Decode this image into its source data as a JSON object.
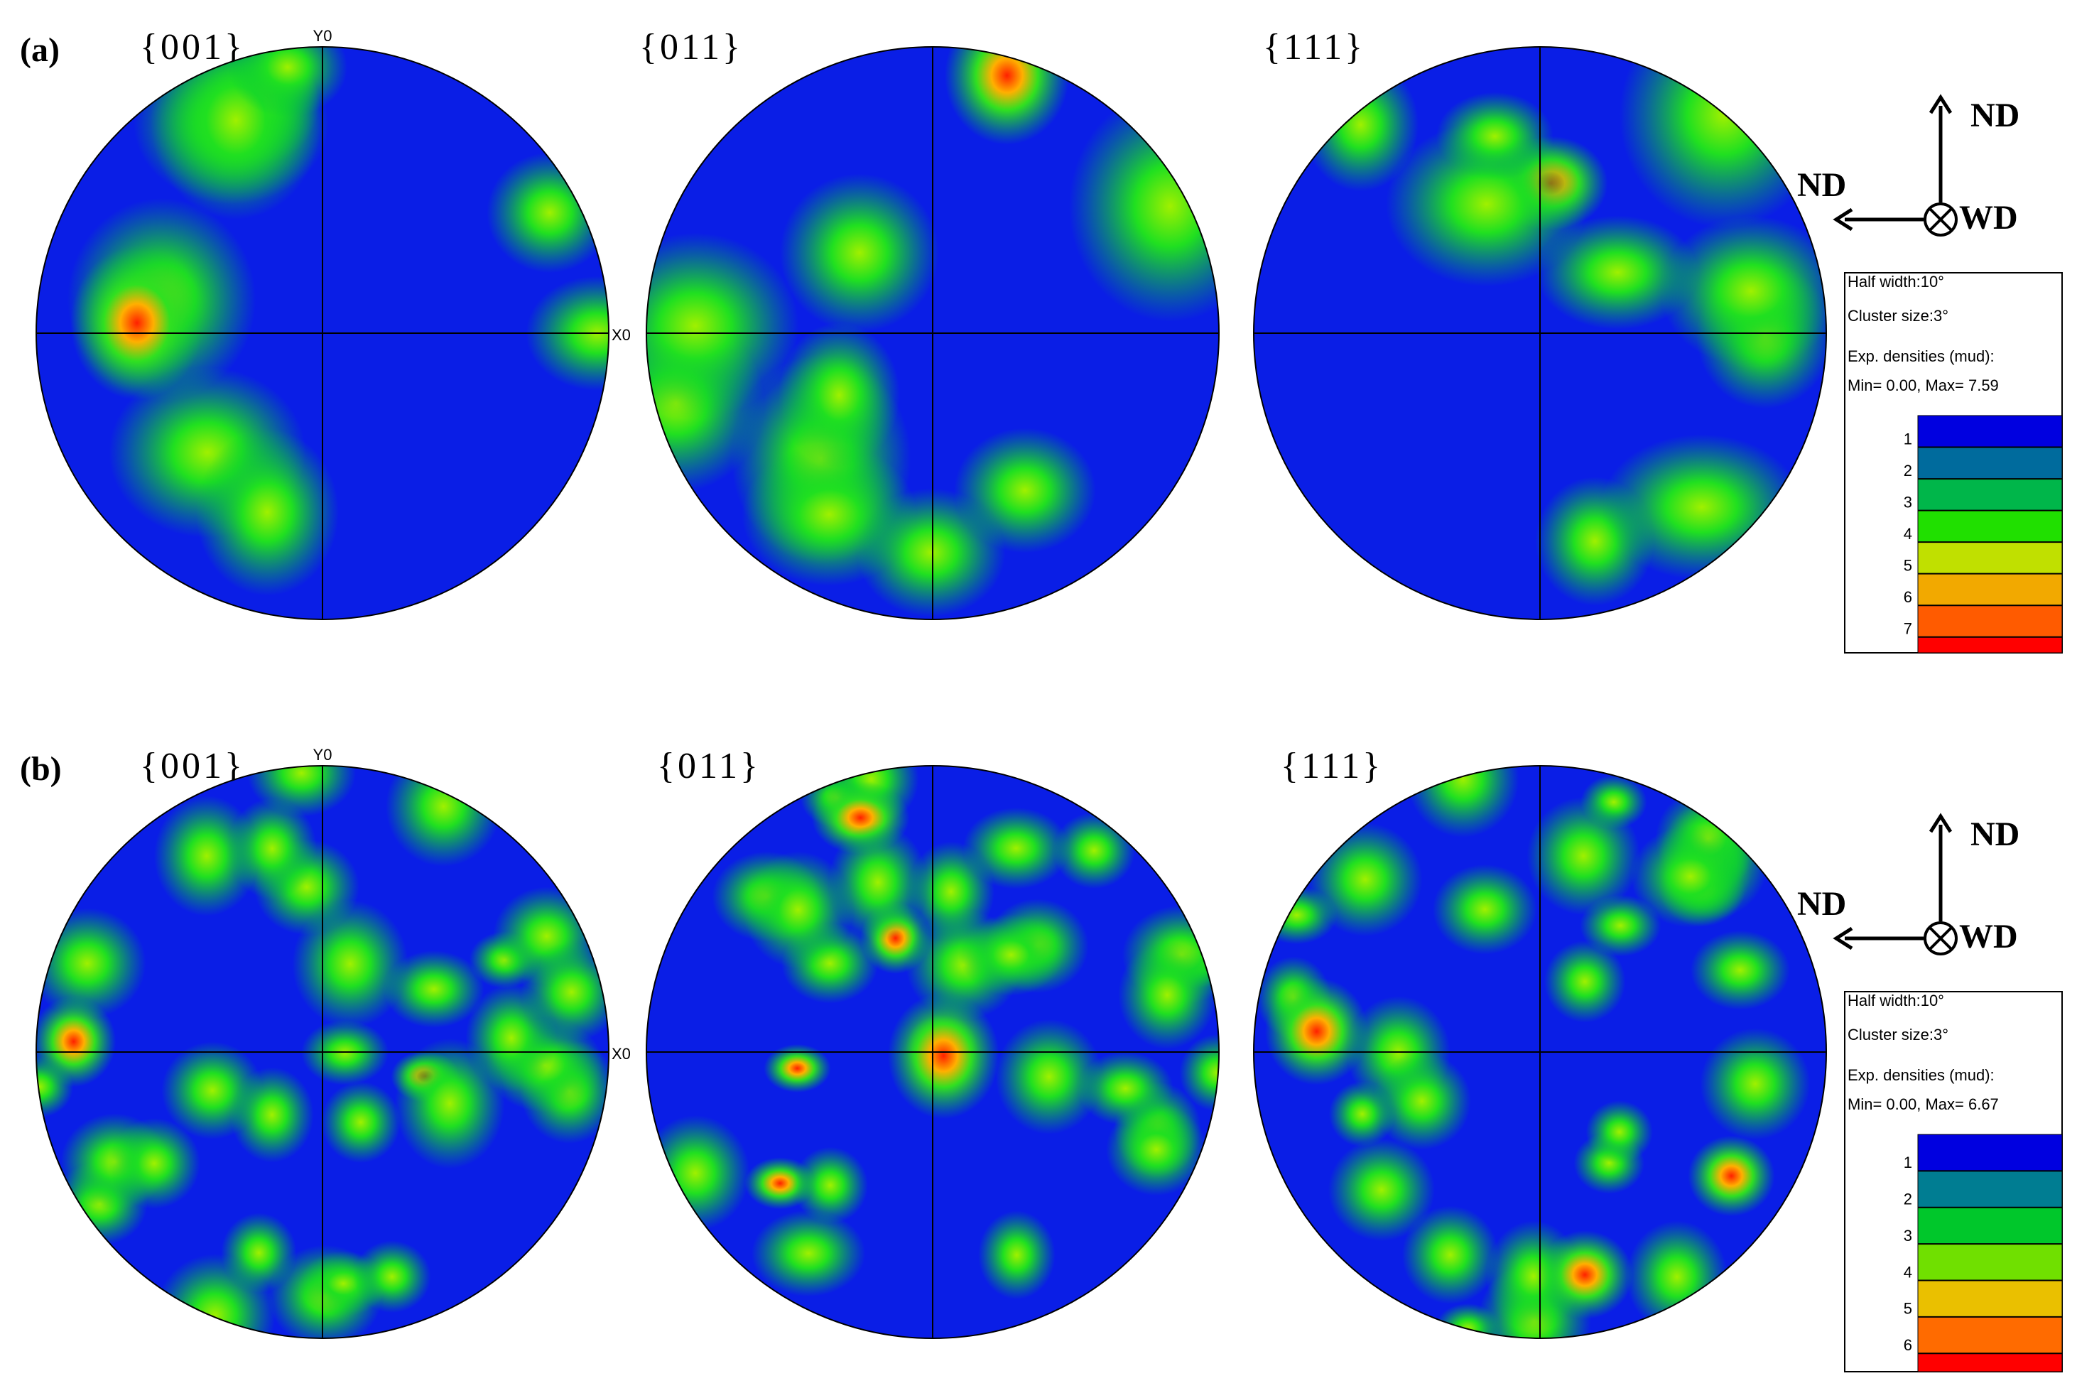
{
  "panels": [
    {
      "label": "(a)",
      "figures": [
        {
          "title": "{001}"
        },
        {
          "title": "{011}"
        },
        {
          "title": "{111}"
        }
      ],
      "y_axis_label": "Y0",
      "x_axis_label": "X0",
      "directions": {
        "up": "ND",
        "left": "ND",
        "normal": "WD"
      },
      "legend": {
        "lines": [
          "Half width:10°",
          "Cluster size:3°",
          "Exp. densities (mud):",
          "Min= 0.00, Max= 7.59"
        ],
        "levels": [
          1,
          2,
          3,
          4,
          5,
          6,
          7
        ]
      }
    },
    {
      "label": "(b)",
      "figures": [
        {
          "title": "{001}"
        },
        {
          "title": "{011}"
        },
        {
          "title": "{111}"
        }
      ],
      "y_axis_label": "Y0",
      "x_axis_label": "X0",
      "directions": {
        "up": "ND",
        "left": "ND",
        "normal": "WD"
      },
      "legend": {
        "lines": [
          "Half width:10°",
          "Cluster size:3°",
          "Exp. densities (mud):",
          "Min= 0.00, Max= 6.67"
        ],
        "levels": [
          1,
          2,
          3,
          4,
          5,
          6
        ]
      }
    }
  ]
}
